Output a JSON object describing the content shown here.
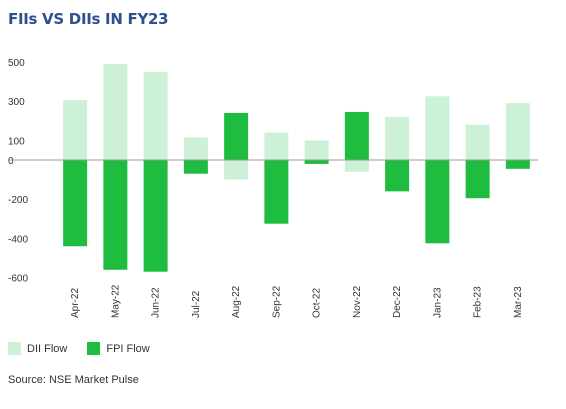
{
  "title": "FIIs VS DIIs IN FY23",
  "source": "Source: NSE Market Pulse",
  "colors": {
    "dii": "#cdf1d6",
    "fpi": "#1fbd3f",
    "axis": "#999999"
  },
  "chart_data": {
    "type": "bar",
    "title": "FIIs VS DIIs IN FY23",
    "xlabel": "",
    "ylabel": "",
    "categories": [
      "Apr-22",
      "May-22",
      "Jun-22",
      "Jul-22",
      "Aug-22",
      "Sep-22",
      "Oct-22",
      "Nov-22",
      "Dec-22",
      "Jan-23",
      "Feb-23",
      "Mar-23"
    ],
    "yticks": [
      500,
      300,
      100,
      0,
      -200,
      -400,
      -600
    ],
    "ylim": [
      -620,
      510
    ],
    "grid": false,
    "legend_position": "bottom-left",
    "series": [
      {
        "name": "DII Flow",
        "color_key": "dii",
        "values": [
          305,
          490,
          450,
          115,
          -100,
          140,
          100,
          -60,
          220,
          325,
          180,
          290
        ]
      },
      {
        "name": "FPI Flow",
        "color_key": "fpi",
        "values": [
          -440,
          -560,
          -570,
          -70,
          240,
          -325,
          -20,
          245,
          -160,
          -425,
          -195,
          -45
        ]
      }
    ]
  }
}
